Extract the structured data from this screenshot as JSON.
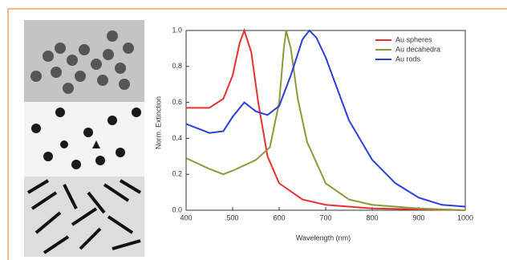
{
  "chart_data": {
    "type": "line",
    "xlabel": "Wavelength (nm)",
    "ylabel": "Norm. Extinction",
    "xlim": [
      400,
      1000
    ],
    "xticks": [
      400,
      500,
      600,
      700,
      800,
      900,
      1000
    ],
    "ylim": [
      0,
      1
    ],
    "yticks": [
      {
        "value": 0,
        "label": "0.0"
      },
      0.2,
      0.4,
      0.6,
      0.8,
      {
        "value": 1,
        "label": "1.0"
      }
    ],
    "legend": "upper right",
    "series": [
      {
        "name": "Au spheres",
        "color": "#e8312f",
        "x": [
          400,
          450,
          480,
          500,
          515,
          525,
          540,
          555,
          575,
          600,
          650,
          700,
          800,
          1000
        ],
        "values": [
          0.57,
          0.57,
          0.62,
          0.75,
          0.93,
          1.0,
          0.88,
          0.6,
          0.3,
          0.15,
          0.06,
          0.03,
          0.01,
          0.0
        ]
      },
      {
        "name": "Au decahedra",
        "color": "#8a9a3a",
        "x": [
          400,
          450,
          480,
          500,
          550,
          580,
          600,
          610,
          615,
          625,
          640,
          660,
          700,
          750,
          800,
          900,
          1000
        ],
        "values": [
          0.29,
          0.23,
          0.2,
          0.22,
          0.28,
          0.35,
          0.6,
          0.9,
          1.0,
          0.9,
          0.62,
          0.38,
          0.15,
          0.06,
          0.03,
          0.01,
          0.0
        ]
      },
      {
        "name": "Au rods",
        "color": "#2a3fd8",
        "x": [
          400,
          450,
          480,
          500,
          525,
          550,
          575,
          600,
          625,
          650,
          665,
          680,
          700,
          750,
          800,
          850,
          900,
          950,
          1000
        ],
        "values": [
          0.48,
          0.43,
          0.44,
          0.52,
          0.6,
          0.55,
          0.53,
          0.58,
          0.75,
          0.95,
          1.0,
          0.96,
          0.85,
          0.5,
          0.28,
          0.15,
          0.07,
          0.03,
          0.02
        ]
      }
    ]
  }
}
